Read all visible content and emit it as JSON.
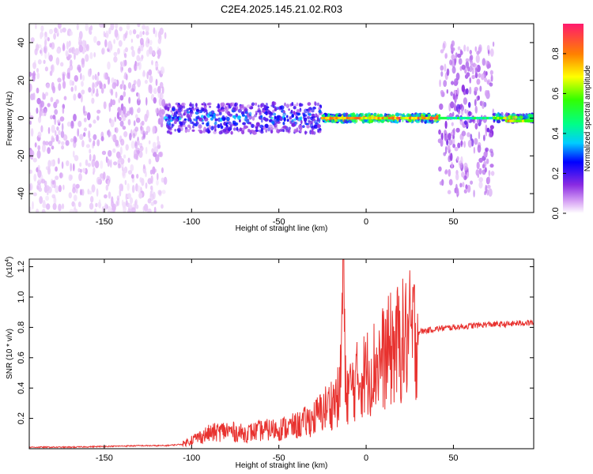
{
  "title": "C2E4.2025.145.21.02.R03",
  "chart_data": [
    {
      "type": "heatmap",
      "xlabel": "Height of straight line (km)",
      "ylabel": "Frequency (Hz)",
      "xlim": [
        -193,
        96
      ],
      "ylim": [
        -50,
        50
      ],
      "xticks": [
        -150,
        -100,
        -50,
        0,
        50
      ],
      "yticks": [
        -40,
        -20,
        0,
        20,
        40
      ],
      "colorbar": {
        "label": "Normalized spectral amplitude",
        "range": [
          0,
          0.95
        ],
        "ticks": [
          0.0,
          0.2,
          0.4,
          0.6,
          0.8
        ]
      },
      "regions": [
        {
          "x": [
            -193,
            -115
          ],
          "freq_spread": 50,
          "amplitude": 0.07
        },
        {
          "x": [
            -115,
            -25
          ],
          "freq_spread": 8,
          "amplitude": 0.3
        },
        {
          "x": [
            -25,
            42
          ],
          "freq_spread": 2,
          "amplitude": 0.75
        },
        {
          "x": [
            42,
            73
          ],
          "freq_spread": 40,
          "amplitude": 0.15
        },
        {
          "x": [
            73,
            96
          ],
          "freq_spread": 2,
          "amplitude": 0.6
        }
      ]
    },
    {
      "type": "line",
      "xlabel": "Height of straight line (km)",
      "ylabel": "SNR (10 * v/v)",
      "y_multiplier": "(x10",
      "y_multiplier_exp": "4",
      "y_multiplier_close": ")",
      "xlim": [
        -193,
        96
      ],
      "ylim": [
        0,
        1.25
      ],
      "xticks": [
        -150,
        -100,
        -50,
        0,
        50
      ],
      "yticks": [
        0.2,
        0.4,
        0.6,
        0.8,
        1.0,
        1.2
      ],
      "color": "#e8322f",
      "series": [
        {
          "x": [
            -193,
            -170,
            -150,
            -130,
            -115,
            -105,
            -100,
            -90,
            -80,
            -70,
            -60,
            -50,
            -40,
            -30,
            -25,
            -20,
            -15,
            -13,
            -12,
            -10,
            -5,
            0,
            5,
            10,
            15,
            20,
            25,
            30,
            40,
            50,
            60,
            70,
            80,
            90,
            96
          ],
          "y": [
            0.01,
            0.01,
            0.015,
            0.02,
            0.02,
            0.03,
            0.06,
            0.1,
            0.12,
            0.1,
            0.12,
            0.13,
            0.15,
            0.2,
            0.25,
            0.3,
            0.35,
            1.25,
            0.4,
            0.38,
            0.45,
            0.5,
            0.55,
            0.6,
            0.66,
            0.7,
            0.74,
            0.77,
            0.79,
            0.8,
            0.81,
            0.82,
            0.82,
            0.83,
            0.83
          ]
        }
      ]
    }
  ]
}
